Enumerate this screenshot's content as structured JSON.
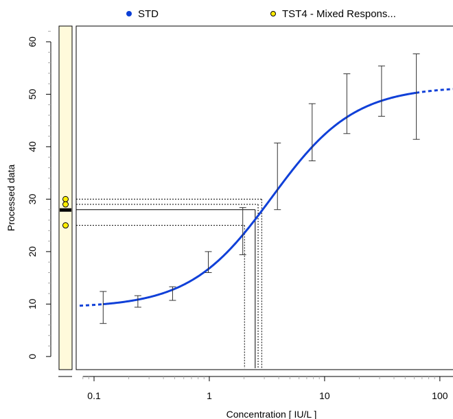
{
  "legend": [
    {
      "label": "STD",
      "color": "#1040d8"
    },
    {
      "label": "TST4 - Mixed Respons...",
      "color": "#ffee00"
    }
  ],
  "chart_data": {
    "type": "line",
    "xlabel": "Concentration  [ IU/L ]",
    "ylabel": "Processed data",
    "x_scale": "log",
    "xlim": [
      0.07,
      130
    ],
    "ylim": [
      -2.5,
      63
    ],
    "x_ticks": [
      0.1,
      1,
      10,
      100
    ],
    "x_tick_labels": [
      "0.1",
      "1",
      "10",
      "100"
    ],
    "y_ticks": [
      0,
      10,
      20,
      30,
      40,
      50,
      60
    ],
    "y_tick_labels": [
      "0",
      "10",
      "20",
      "30",
      "40",
      "50",
      "60"
    ],
    "grid": false,
    "legend_position": "top",
    "series": [
      {
        "name": "STD",
        "color": "#1040d8",
        "curve": {
          "model": "4PL",
          "bottom": 9.3,
          "top": 51.5,
          "ec50": 3.5,
          "hill": 1.22,
          "solid_range": [
            0.12,
            62
          ],
          "dashed_range": [
            0.075,
            130
          ]
        },
        "points": [
          {
            "x": 0.12,
            "y": 9.3,
            "low": 6.3,
            "high": 12.4
          },
          {
            "x": 0.24,
            "y": 10.5,
            "low": 9.4,
            "high": 11.6
          },
          {
            "x": 0.48,
            "y": 12.0,
            "low": 10.7,
            "high": 13.3
          },
          {
            "x": 0.98,
            "y": 18.0,
            "low": 16.0,
            "high": 20.0
          },
          {
            "x": 1.95,
            "y": 23.9,
            "low": 19.4,
            "high": 28.4
          },
          {
            "x": 3.9,
            "y": 34.4,
            "low": 28.0,
            "high": 40.7
          },
          {
            "x": 7.8,
            "y": 42.8,
            "low": 37.3,
            "high": 48.2
          },
          {
            "x": 15.6,
            "y": 48.2,
            "low": 42.5,
            "high": 53.9
          },
          {
            "x": 31.2,
            "y": 50.6,
            "low": 45.8,
            "high": 55.4
          },
          {
            "x": 62.5,
            "y": 49.6,
            "low": 41.4,
            "high": 57.7
          }
        ]
      },
      {
        "name": "TST4 - Mixed Respons...",
        "color": "#ffee00",
        "responses": [
          30.0,
          29.0,
          25.0
        ],
        "mean": 28.0,
        "back_calculated": [
          {
            "y": 30.0,
            "x": 2.85
          },
          {
            "y": 29.0,
            "x": 2.65
          },
          {
            "y": 28.0,
            "x": 2.5
          },
          {
            "y": 25.0,
            "x": 2.02
          }
        ]
      }
    ]
  }
}
